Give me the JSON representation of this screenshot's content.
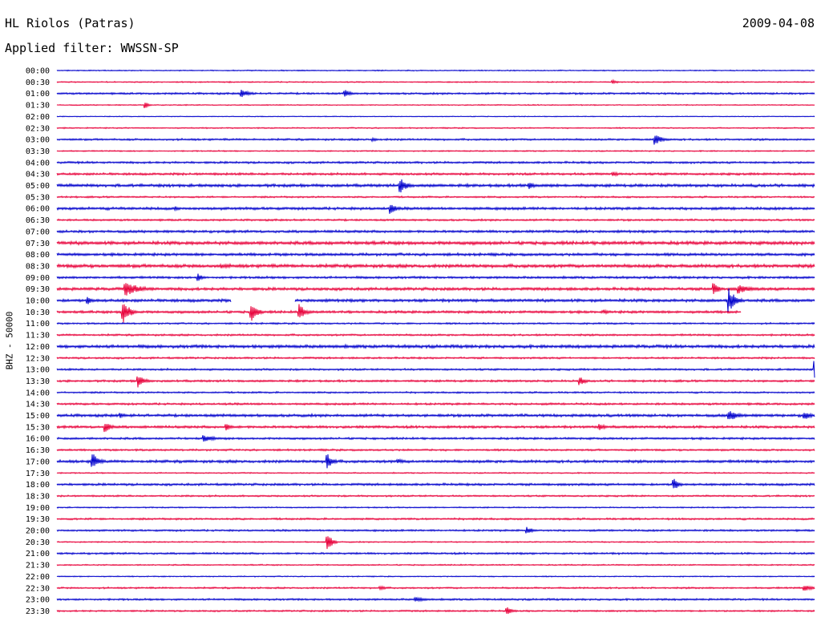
{
  "header": {
    "station": "HL Riolos (Patras)",
    "date": "2009-04-08",
    "filter": "Applied filter: WWSSN-SP"
  },
  "side_label": "BHZ - 50000",
  "colors": {
    "odd_rows": "#0000cc",
    "even_rows": "#e8003a",
    "background": "#ffffff"
  },
  "chart_data": {
    "type": "line",
    "subtype": "helicorder",
    "channel_label": "BHZ - 50000",
    "row_interval_minutes": 30,
    "row_labels": [
      "00:00",
      "00:30",
      "01:00",
      "01:30",
      "02:00",
      "02:30",
      "03:00",
      "03:30",
      "04:00",
      "04:30",
      "05:00",
      "05:30",
      "06:00",
      "06:30",
      "07:00",
      "07:30",
      "08:00",
      "08:30",
      "09:00",
      "09:30",
      "10:00",
      "10:30",
      "11:00",
      "11:30",
      "12:00",
      "12:30",
      "13:00",
      "13:30",
      "14:00",
      "14:30",
      "15:00",
      "15:30",
      "16:00",
      "16:30",
      "17:00",
      "17:30",
      "18:00",
      "18:30",
      "19:00",
      "19:30",
      "20:00",
      "20:30",
      "21:00",
      "21:30",
      "22:00",
      "22:30",
      "23:00",
      "23:30"
    ],
    "row_colors": [
      "blue",
      "red"
    ],
    "noise_level": [
      0.5,
      0.6,
      0.9,
      0.5,
      0.4,
      0.6,
      0.9,
      0.6,
      1.0,
      1.1,
      1.4,
      0.8,
      1.3,
      0.9,
      1.2,
      1.6,
      1.3,
      1.6,
      1.1,
      1.4,
      1.4,
      1.2,
      0.8,
      0.9,
      1.5,
      0.9,
      0.9,
      1.0,
      0.8,
      1.0,
      1.3,
      1.2,
      1.0,
      0.9,
      1.3,
      0.6,
      1.1,
      0.8,
      0.6,
      0.9,
      0.9,
      0.6,
      0.9,
      0.6,
      0.5,
      0.8,
      0.9,
      0.8
    ],
    "events": [
      {
        "row": "00:30",
        "minute": 22.0,
        "amp": 3,
        "dur": 0.4
      },
      {
        "row": "01:00",
        "minute": 7.3,
        "amp": 6,
        "dur": 0.7
      },
      {
        "row": "01:00",
        "minute": 11.4,
        "amp": 5,
        "dur": 0.5
      },
      {
        "row": "01:30",
        "minute": 3.5,
        "amp": 4,
        "dur": 0.3
      },
      {
        "row": "03:00",
        "minute": 23.7,
        "amp": 7,
        "dur": 0.6
      },
      {
        "row": "03:00",
        "minute": 12.5,
        "amp": 3,
        "dur": 0.5
      },
      {
        "row": "04:30",
        "minute": 22.0,
        "amp": 3,
        "dur": 0.8
      },
      {
        "row": "05:00",
        "minute": 13.6,
        "amp": 10,
        "dur": 0.6
      },
      {
        "row": "05:00",
        "minute": 18.7,
        "amp": 5,
        "dur": 0.5
      },
      {
        "row": "06:00",
        "minute": 13.2,
        "amp": 7,
        "dur": 0.5
      },
      {
        "row": "06:00",
        "minute": 4.7,
        "amp": 3,
        "dur": 0.5
      },
      {
        "row": "08:30",
        "minute": 6.5,
        "amp": 3,
        "dur": 1.5
      },
      {
        "row": "09:00",
        "minute": 5.6,
        "amp": 5,
        "dur": 0.4
      },
      {
        "row": "09:30",
        "minute": 2.7,
        "amp": 9,
        "dur": 1.6
      },
      {
        "row": "09:30",
        "minute": 26.0,
        "amp": 8,
        "dur": 0.5
      },
      {
        "row": "09:30",
        "minute": 27.0,
        "amp": 6,
        "dur": 1.2
      },
      {
        "row": "10:00",
        "minute": 1.2,
        "amp": 6,
        "dur": 0.4
      },
      {
        "row": "10:00",
        "minute": 26.6,
        "amp": 16,
        "dur": 0.6
      },
      {
        "row": "10:30",
        "minute": 2.6,
        "amp": 16,
        "dur": 0.6
      },
      {
        "row": "10:30",
        "minute": 7.7,
        "amp": 12,
        "dur": 0.5
      },
      {
        "row": "10:30",
        "minute": 9.6,
        "amp": 10,
        "dur": 0.5
      },
      {
        "row": "10:30",
        "minute": 21.7,
        "amp": 3,
        "dur": 0.3
      },
      {
        "row": "13:00",
        "minute": 30.0,
        "amp": 14,
        "dur": 0.4
      },
      {
        "row": "13:30",
        "minute": 3.2,
        "amp": 10,
        "dur": 0.5
      },
      {
        "row": "13:30",
        "minute": 20.7,
        "amp": 6,
        "dur": 0.5
      },
      {
        "row": "15:00",
        "minute": 26.6,
        "amp": 7,
        "dur": 1.0
      },
      {
        "row": "15:00",
        "minute": 29.6,
        "amp": 6,
        "dur": 0.6
      },
      {
        "row": "15:00",
        "minute": 2.5,
        "amp": 4,
        "dur": 0.5
      },
      {
        "row": "15:30",
        "minute": 1.9,
        "amp": 7,
        "dur": 0.6
      },
      {
        "row": "15:30",
        "minute": 6.7,
        "amp": 5,
        "dur": 0.4
      },
      {
        "row": "15:30",
        "minute": 21.5,
        "amp": 5,
        "dur": 0.4
      },
      {
        "row": "16:00",
        "minute": 5.8,
        "amp": 4,
        "dur": 1.4
      },
      {
        "row": "17:00",
        "minute": 1.4,
        "amp": 12,
        "dur": 0.5
      },
      {
        "row": "17:00",
        "minute": 10.7,
        "amp": 12,
        "dur": 0.4
      },
      {
        "row": "17:00",
        "minute": 13.5,
        "amp": 3,
        "dur": 1.0
      },
      {
        "row": "18:00",
        "minute": 24.4,
        "amp": 10,
        "dur": 0.4
      },
      {
        "row": "20:00",
        "minute": 18.6,
        "amp": 5,
        "dur": 0.6
      },
      {
        "row": "20:30",
        "minute": 10.7,
        "amp": 12,
        "dur": 0.4
      },
      {
        "row": "22:30",
        "minute": 12.8,
        "amp": 3,
        "dur": 0.5
      },
      {
        "row": "22:30",
        "minute": 29.6,
        "amp": 4,
        "dur": 1.0
      },
      {
        "row": "23:00",
        "minute": 14.2,
        "amp": 3,
        "dur": 1.2
      },
      {
        "row": "23:30",
        "minute": 17.8,
        "amp": 6,
        "dur": 0.4
      }
    ],
    "gaps": [
      {
        "row": "10:00",
        "from_minute": 6.9,
        "to_minute": 9.4
      },
      {
        "row": "10:30",
        "from_minute": 27.1,
        "to_minute": 30.0
      }
    ]
  }
}
